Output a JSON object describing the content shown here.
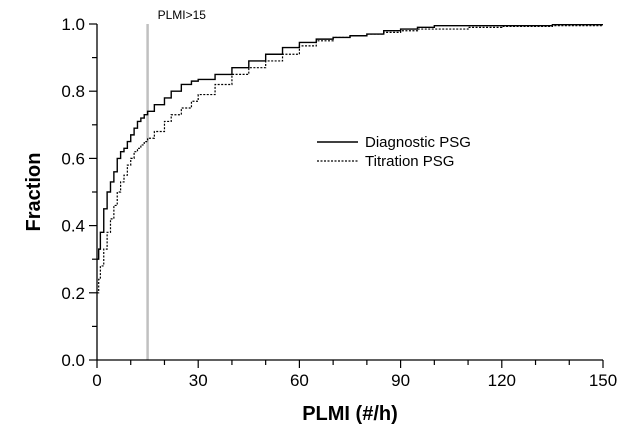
{
  "chart_data": {
    "type": "line",
    "xlabel": "PLMI (#/h)",
    "ylabel": "Fraction",
    "xlim": [
      0,
      150
    ],
    "ylim": [
      0,
      1.0
    ],
    "x_ticks": [
      "0",
      "30",
      "60",
      "90",
      "120",
      "150"
    ],
    "y_ticks": [
      "0.0",
      "0.2",
      "0.4",
      "0.6",
      "0.8",
      "1.0"
    ],
    "grid": false,
    "legend_placement": "center-right",
    "annotation": {
      "text": "PLMI>15",
      "x": 15,
      "color": "#c0c0c0"
    },
    "series": [
      {
        "name": "Diagnostic PSG",
        "style": "solid",
        "color": "#000000",
        "points": [
          [
            0,
            0.3
          ],
          [
            0.5,
            0.33
          ],
          [
            1,
            0.38
          ],
          [
            2,
            0.45
          ],
          [
            3,
            0.5
          ],
          [
            4,
            0.53
          ],
          [
            5,
            0.56
          ],
          [
            6,
            0.6
          ],
          [
            7,
            0.62
          ],
          [
            8,
            0.63
          ],
          [
            9,
            0.65
          ],
          [
            10,
            0.67
          ],
          [
            11,
            0.69
          ],
          [
            12,
            0.71
          ],
          [
            13,
            0.72
          ],
          [
            14,
            0.73
          ],
          [
            15,
            0.74
          ],
          [
            17,
            0.76
          ],
          [
            20,
            0.78
          ],
          [
            22,
            0.8
          ],
          [
            25,
            0.82
          ],
          [
            28,
            0.83
          ],
          [
            30,
            0.835
          ],
          [
            35,
            0.85
          ],
          [
            40,
            0.87
          ],
          [
            45,
            0.89
          ],
          [
            50,
            0.91
          ],
          [
            55,
            0.93
          ],
          [
            60,
            0.945
          ],
          [
            65,
            0.955
          ],
          [
            70,
            0.96
          ],
          [
            75,
            0.965
          ],
          [
            80,
            0.97
          ],
          [
            85,
            0.98
          ],
          [
            90,
            0.985
          ],
          [
            95,
            0.99
          ],
          [
            100,
            0.995
          ],
          [
            110,
            0.995
          ],
          [
            120,
            0.995
          ],
          [
            135,
            0.998
          ],
          [
            150,
            0.998
          ]
        ]
      },
      {
        "name": "Titration PSG",
        "style": "dotted",
        "color": "#000000",
        "points": [
          [
            0,
            0.2
          ],
          [
            0.5,
            0.24
          ],
          [
            1,
            0.28
          ],
          [
            2,
            0.33
          ],
          [
            3,
            0.38
          ],
          [
            4,
            0.42
          ],
          [
            5,
            0.46
          ],
          [
            6,
            0.5
          ],
          [
            7,
            0.53
          ],
          [
            8,
            0.55
          ],
          [
            9,
            0.58
          ],
          [
            10,
            0.6
          ],
          [
            11,
            0.62
          ],
          [
            12,
            0.63
          ],
          [
            13,
            0.64
          ],
          [
            14,
            0.65
          ],
          [
            15,
            0.66
          ],
          [
            17,
            0.68
          ],
          [
            20,
            0.71
          ],
          [
            22,
            0.73
          ],
          [
            25,
            0.75
          ],
          [
            28,
            0.77
          ],
          [
            30,
            0.79
          ],
          [
            35,
            0.82
          ],
          [
            40,
            0.85
          ],
          [
            45,
            0.87
          ],
          [
            50,
            0.89
          ],
          [
            55,
            0.91
          ],
          [
            60,
            0.935
          ],
          [
            65,
            0.95
          ],
          [
            70,
            0.96
          ],
          [
            75,
            0.965
          ],
          [
            80,
            0.97
          ],
          [
            85,
            0.975
          ],
          [
            90,
            0.98
          ],
          [
            95,
            0.985
          ],
          [
            100,
            0.985
          ],
          [
            110,
            0.99
          ],
          [
            120,
            0.993
          ],
          [
            135,
            0.995
          ],
          [
            150,
            0.996
          ]
        ]
      }
    ]
  }
}
